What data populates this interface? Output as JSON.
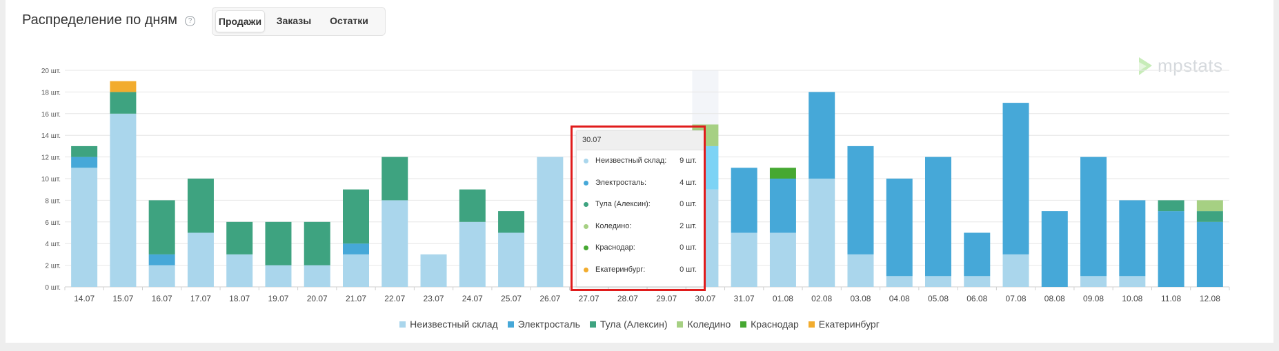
{
  "header": {
    "title": "Распределение по дням",
    "help_icon": "?",
    "tabs": [
      {
        "label": "Продажи",
        "active": true
      },
      {
        "label": "Заказы",
        "active": false
      },
      {
        "label": "Остатки",
        "active": false
      }
    ]
  },
  "logo": {
    "text": "mpstats",
    "color": "#d5d9dd",
    "mark_color": "#c7ecb8"
  },
  "colors": {
    "Неизвестный склад": "#aad6ec",
    "Электросталь": "#46a8d8",
    "Тула (Алексин)": "#3ea380",
    "Коледино": "#a6d083",
    "Краснодар": "#46a832",
    "Екатеринбург": "#f2ac2e"
  },
  "chart_data": {
    "type": "bar",
    "stacked": true,
    "categories": [
      "14.07",
      "15.07",
      "16.07",
      "17.07",
      "18.07",
      "19.07",
      "20.07",
      "21.07",
      "22.07",
      "23.07",
      "24.07",
      "25.07",
      "26.07",
      "27.07",
      "28.07",
      "29.07",
      "30.07",
      "31.07",
      "01.08",
      "02.08",
      "03.08",
      "04.08",
      "05.08",
      "06.08",
      "07.08",
      "08.08",
      "09.08",
      "10.08",
      "11.08",
      "12.08"
    ],
    "series": [
      {
        "name": "Неизвестный склад",
        "values": [
          11,
          16,
          2,
          5,
          3,
          2,
          2,
          3,
          8,
          3,
          6,
          5,
          12,
          0,
          0,
          0,
          9,
          5,
          5,
          10,
          3,
          1,
          1,
          1,
          3,
          0,
          1,
          1,
          0,
          0
        ]
      },
      {
        "name": "Электросталь",
        "values": [
          1,
          0,
          1,
          0,
          0,
          0,
          0,
          1,
          0,
          0,
          0,
          0,
          0,
          0,
          0,
          0,
          4,
          6,
          5,
          8,
          10,
          9,
          11,
          4,
          14,
          7,
          11,
          7,
          7,
          6
        ]
      },
      {
        "name": "Тула (Алексин)",
        "values": [
          1,
          2,
          5,
          5,
          3,
          4,
          4,
          5,
          4,
          0,
          3,
          2,
          0,
          0,
          0,
          0,
          0,
          0,
          0,
          0,
          0,
          0,
          0,
          0,
          0,
          0,
          0,
          0,
          1,
          1
        ]
      },
      {
        "name": "Коледино",
        "values": [
          0,
          0,
          0,
          0,
          0,
          0,
          0,
          0,
          0,
          0,
          0,
          0,
          0,
          0,
          0,
          0,
          2,
          0,
          0,
          0,
          0,
          0,
          0,
          0,
          0,
          0,
          0,
          0,
          0,
          1
        ]
      },
      {
        "name": "Краснодар",
        "values": [
          0,
          0,
          0,
          0,
          0,
          0,
          0,
          0,
          0,
          0,
          0,
          0,
          0,
          0,
          0,
          0,
          0,
          0,
          1,
          0,
          0,
          0,
          0,
          0,
          0,
          0,
          0,
          0,
          0,
          0
        ]
      },
      {
        "name": "Екатеринбург",
        "values": [
          0,
          1,
          0,
          0,
          0,
          0,
          0,
          0,
          0,
          0,
          0,
          0,
          0,
          0,
          0,
          0,
          0,
          0,
          0,
          0,
          0,
          0,
          0,
          0,
          0,
          0,
          0,
          0,
          0,
          0
        ]
      }
    ],
    "y_ticks": [
      "0 шт.",
      "2 шт.",
      "4 шт.",
      "6 шт.",
      "8 шт.",
      "10 шт.",
      "12 шт.",
      "14 шт.",
      "16 шт.",
      "18 шт.",
      "20 шт."
    ],
    "ylim": [
      0,
      20
    ],
    "grid": true,
    "legend_position": "bottom",
    "highlighted_category": "30.07"
  },
  "tooltip": {
    "date": "30.07",
    "rows": [
      {
        "label": "Неизвестный склад:",
        "value": "9 шт.",
        "color": "#aad6ec"
      },
      {
        "label": "Электросталь:",
        "value": "4 шт.",
        "color": "#46a8d8"
      },
      {
        "label": "Тула (Алексин):",
        "value": "0 шт.",
        "color": "#3ea380"
      },
      {
        "label": "Коледино:",
        "value": "2 шт.",
        "color": "#a6d083"
      },
      {
        "label": "Краснодар:",
        "value": "0 шт.",
        "color": "#46a832"
      },
      {
        "label": "Екатеринбург:",
        "value": "0 шт.",
        "color": "#f2ac2e"
      }
    ]
  }
}
